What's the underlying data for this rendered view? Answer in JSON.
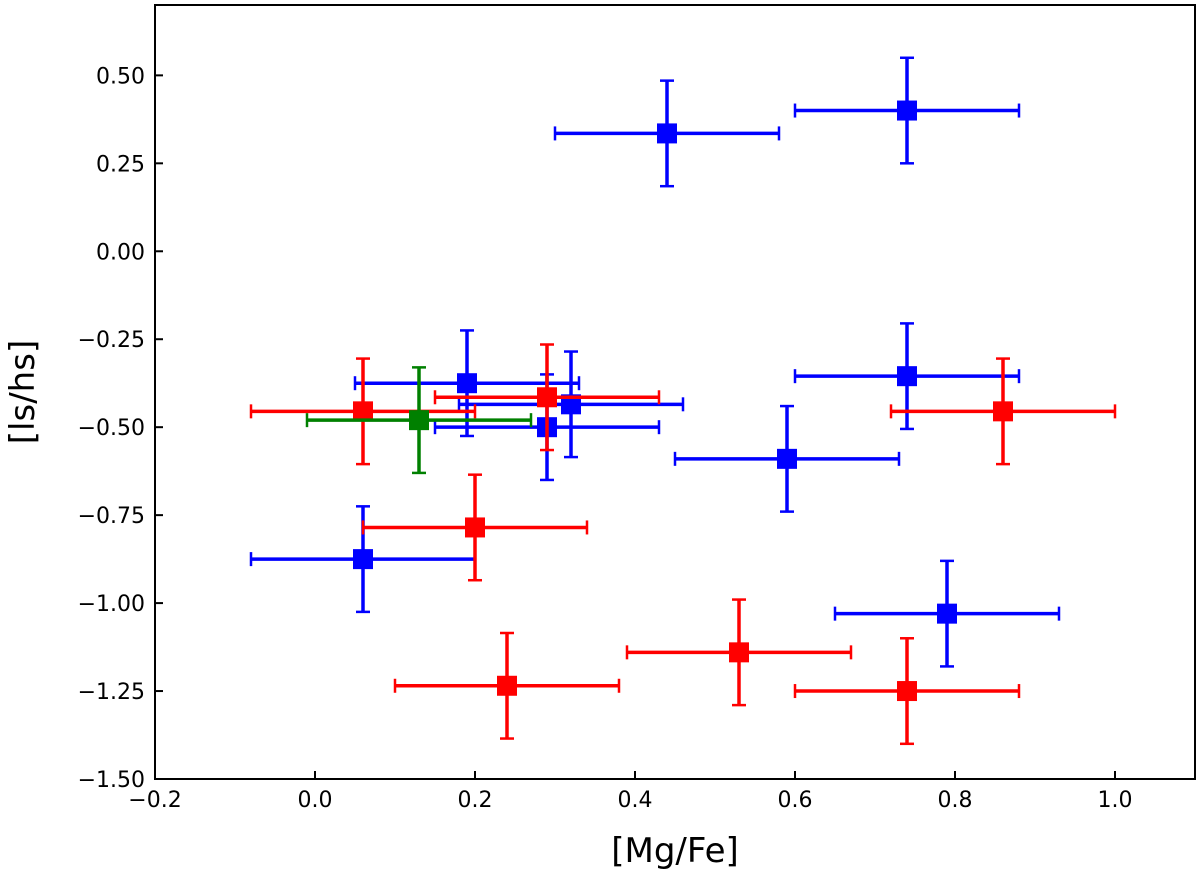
{
  "chart_data": {
    "type": "scatter",
    "title": "",
    "xlabel": "[Mg/Fe]",
    "ylabel": "[ls/hs]",
    "xlim": [
      -0.2,
      1.1
    ],
    "ylim": [
      -1.5,
      0.7
    ],
    "x_ticks": [
      -0.2,
      0.0,
      0.2,
      0.4,
      0.6,
      0.8,
      1.0
    ],
    "x_tick_labels": [
      "−0.2",
      "0.0",
      "0.2",
      "0.4",
      "0.6",
      "0.8",
      "1.0"
    ],
    "y_ticks": [
      0.5,
      0.25,
      0.0,
      -0.25,
      -0.5,
      -0.75,
      -1.0,
      -1.25,
      -1.5
    ],
    "y_tick_labels": [
      "0.50",
      "0.25",
      "0.00",
      "−0.25",
      "−0.50",
      "−0.75",
      "−1.00",
      "−1.25",
      "−1.50"
    ],
    "grid": false,
    "marker": "square",
    "series": [
      {
        "name": "blue",
        "color": "#0000ff",
        "points": [
          {
            "x": 0.44,
            "y": 0.335,
            "xerr": 0.14,
            "yerr": 0.15
          },
          {
            "x": 0.74,
            "y": 0.4,
            "xerr": 0.14,
            "yerr": 0.15
          },
          {
            "x": 0.19,
            "y": -0.375,
            "xerr": 0.14,
            "yerr": 0.15
          },
          {
            "x": 0.32,
            "y": -0.435,
            "xerr": 0.14,
            "yerr": 0.15
          },
          {
            "x": 0.29,
            "y": -0.5,
            "xerr": 0.14,
            "yerr": 0.15
          },
          {
            "x": 0.74,
            "y": -0.355,
            "xerr": 0.14,
            "yerr": 0.15
          },
          {
            "x": 0.59,
            "y": -0.59,
            "xerr": 0.14,
            "yerr": 0.15
          },
          {
            "x": 0.06,
            "y": -0.875,
            "xerr": 0.14,
            "yerr": 0.15
          },
          {
            "x": 0.79,
            "y": -1.03,
            "xerr": 0.14,
            "yerr": 0.15
          }
        ]
      },
      {
        "name": "red",
        "color": "#ff0000",
        "points": [
          {
            "x": 0.06,
            "y": -0.455,
            "xerr": 0.14,
            "yerr": 0.15
          },
          {
            "x": 0.29,
            "y": -0.415,
            "xerr": 0.14,
            "yerr": 0.15
          },
          {
            "x": 0.86,
            "y": -0.455,
            "xerr": 0.14,
            "yerr": 0.15
          },
          {
            "x": 0.2,
            "y": -0.785,
            "xerr": 0.14,
            "yerr": 0.15
          },
          {
            "x": 0.53,
            "y": -1.14,
            "xerr": 0.14,
            "yerr": 0.15
          },
          {
            "x": 0.24,
            "y": -1.235,
            "xerr": 0.14,
            "yerr": 0.15
          },
          {
            "x": 0.74,
            "y": -1.25,
            "xerr": 0.14,
            "yerr": 0.15
          }
        ]
      },
      {
        "name": "green",
        "color": "#008000",
        "points": [
          {
            "x": 0.13,
            "y": -0.48,
            "xerr": 0.14,
            "yerr": 0.15
          }
        ]
      }
    ]
  }
}
